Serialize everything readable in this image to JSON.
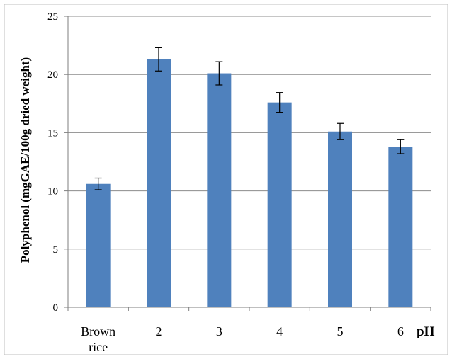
{
  "chart_data": {
    "type": "bar",
    "categories": [
      "Brown rice",
      "2",
      "3",
      "4",
      "5",
      "6"
    ],
    "category_lines": [
      [
        "Brown",
        "rice"
      ],
      [
        "2"
      ],
      [
        "3"
      ],
      [
        "4"
      ],
      [
        "5"
      ],
      [
        "6"
      ]
    ],
    "values": [
      10.6,
      21.3,
      20.1,
      17.6,
      15.1,
      13.8
    ],
    "errors": [
      0.5,
      1.0,
      1.0,
      0.85,
      0.7,
      0.6
    ],
    "ylabel": "Polyphenol (mgGAE/100g dried weight)",
    "xlabel": "pH",
    "ylim": [
      0,
      25
    ],
    "yticks": [
      "0",
      "5",
      "10",
      "15",
      "20",
      "25"
    ],
    "grid": "horizontal",
    "legend": "none",
    "bar_color": "#4F81BD",
    "grid_color": "#8C8C8C"
  }
}
